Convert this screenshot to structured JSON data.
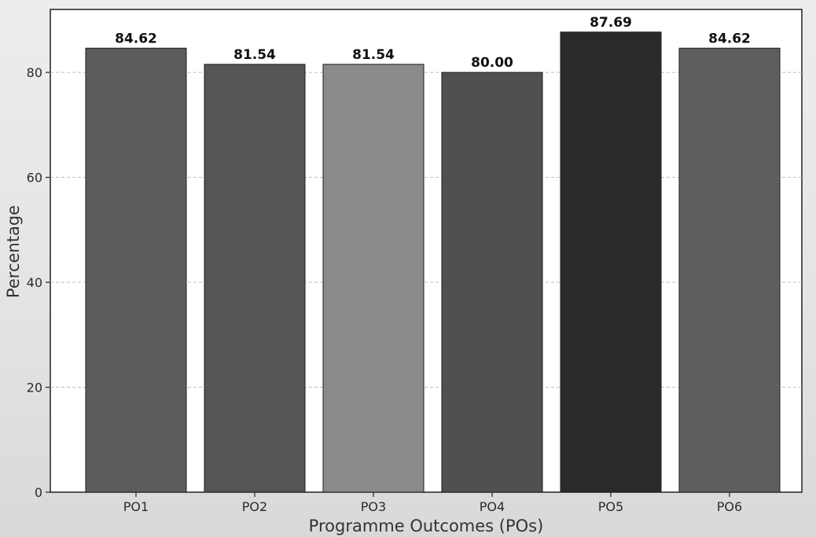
{
  "chart_data": {
    "type": "bar",
    "categories": [
      "PO1",
      "PO2",
      "PO3",
      "PO4",
      "PO5",
      "PO6"
    ],
    "values": [
      84.62,
      81.54,
      81.54,
      80.0,
      87.69,
      84.62
    ],
    "value_labels": [
      "84.62",
      "81.54",
      "81.54",
      "80.00",
      "87.69",
      "84.62"
    ],
    "bar_colors": [
      "#5c5c5c",
      "#555555",
      "#8a8a8c",
      "#505050",
      "#2a2a2a",
      "#5e5e5e"
    ],
    "xlabel": "Programme Outcomes (POs)",
    "ylabel": "Percentage",
    "ylim": [
      0,
      92
    ],
    "yticks": [
      0,
      20,
      40,
      60,
      80
    ],
    "grid": true,
    "grid_axis": "y"
  }
}
